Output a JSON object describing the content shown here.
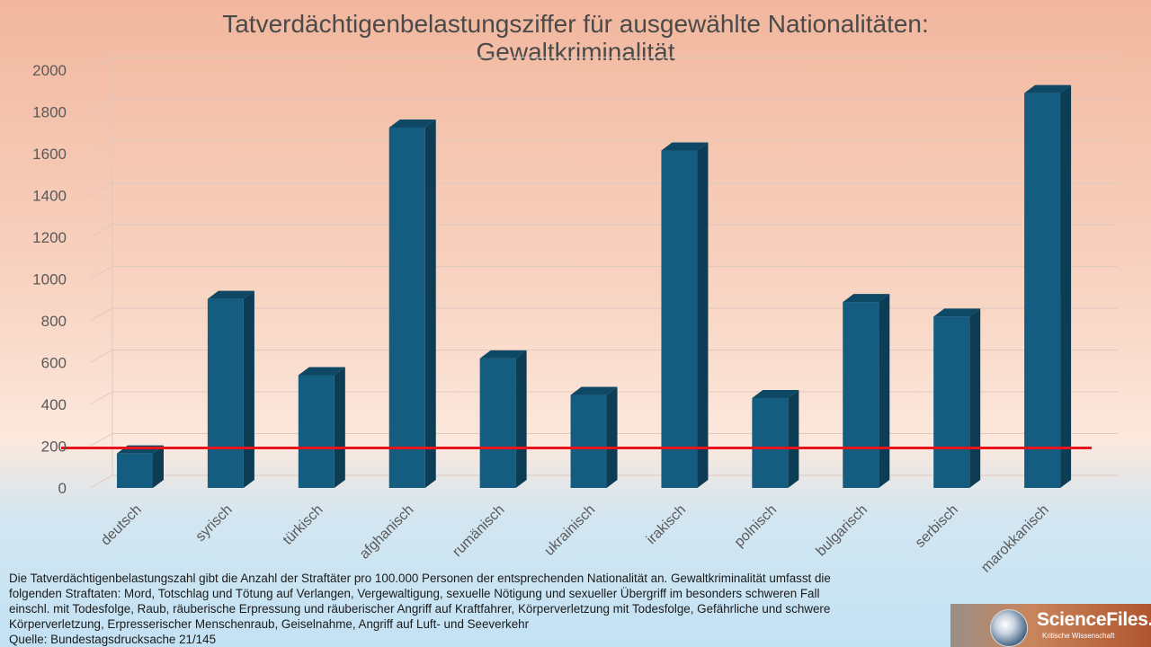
{
  "chart_data": {
    "type": "bar",
    "title": "Tatverdächtigenbelastungsziffer für ausgewählte Nationalitäten:",
    "subtitle": "Gewaltkriminalität",
    "categories": [
      "deutsch",
      "syrisch",
      "türkisch",
      "afghanisch",
      "rumänisch",
      "ukrainisch",
      "irakisch",
      "polnisch",
      "bulgarisch",
      "serbisch",
      "marokkanisch"
    ],
    "values": [
      165,
      905,
      540,
      1725,
      620,
      445,
      1615,
      430,
      890,
      820,
      1890
    ],
    "ylim": [
      0,
      2000
    ],
    "yticks": [
      "0",
      "200",
      "400",
      "600",
      "800",
      "1000",
      "1200",
      "1400",
      "1600",
      "1800",
      "2000"
    ],
    "reference_line": {
      "value": 200,
      "color": "#e8141c"
    },
    "bar_color": "#155d80",
    "grid": true,
    "xlabel": "",
    "ylabel": ""
  },
  "footnote": {
    "lines": [
      "Die Tatverdächtigenbelastungszahl gibt die Anzahl der Straftäter pro 100.000 Personen der entsprechenden Nationalität an. Gewaltkriminalität umfasst die",
      "folgenden Straftaten: Mord, Totschlag und Tötung auf Verlangen, Vergewaltigung, sexuelle Nötigung und sexueller Übergriff im besonders schweren Fall",
      "einschl. mit Todesfolge, Raub, räuberische Erpressung und räuberischer Angriff auf Kraftfahrer, Körperverletzung mit Todesfolge, Gefährliche und schwere",
      "Körperverletzung, Erpresserischer Menschenraub, Geiselnahme, Angriff auf Luft- und Seeverkehr",
      "Quelle: Bundestagsdrucksache 21/145"
    ]
  },
  "logo": {
    "name": "ScienceFiles.org",
    "tagline": "Kritische Wissenschaft"
  }
}
